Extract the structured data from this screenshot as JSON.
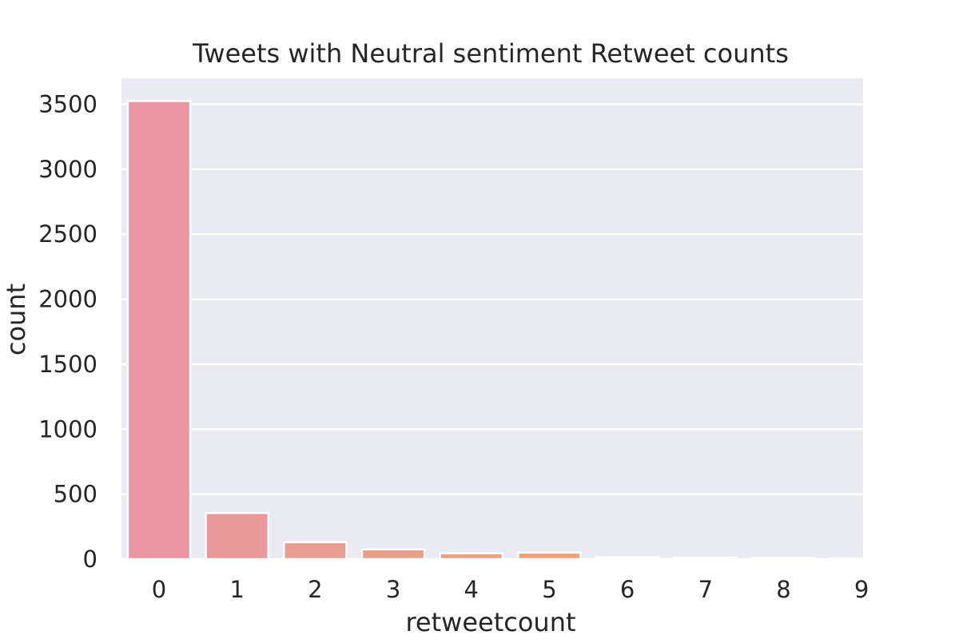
{
  "chart_data": {
    "type": "bar",
    "title": "Tweets with Neutral sentiment Retweet counts",
    "xlabel": "retweetcount",
    "ylabel": "count",
    "categories": [
      "0",
      "1",
      "2",
      "3",
      "4",
      "5",
      "6",
      "7",
      "8",
      "9"
    ],
    "values": [
      3525,
      355,
      130,
      75,
      45,
      50,
      15,
      12,
      8,
      5
    ],
    "ylim": [
      0,
      3700
    ],
    "yticks": [
      0,
      500,
      1000,
      1500,
      2000,
      2500,
      3000,
      3500
    ],
    "grid": true,
    "colors": [
      "#ea96a3",
      "#e9999a",
      "#e99c92",
      "#e89f88",
      "#e8a27f",
      "#e7a574",
      "#e6a86c",
      "#e6aa65",
      "#e5ad5e",
      "#e5b058"
    ]
  }
}
